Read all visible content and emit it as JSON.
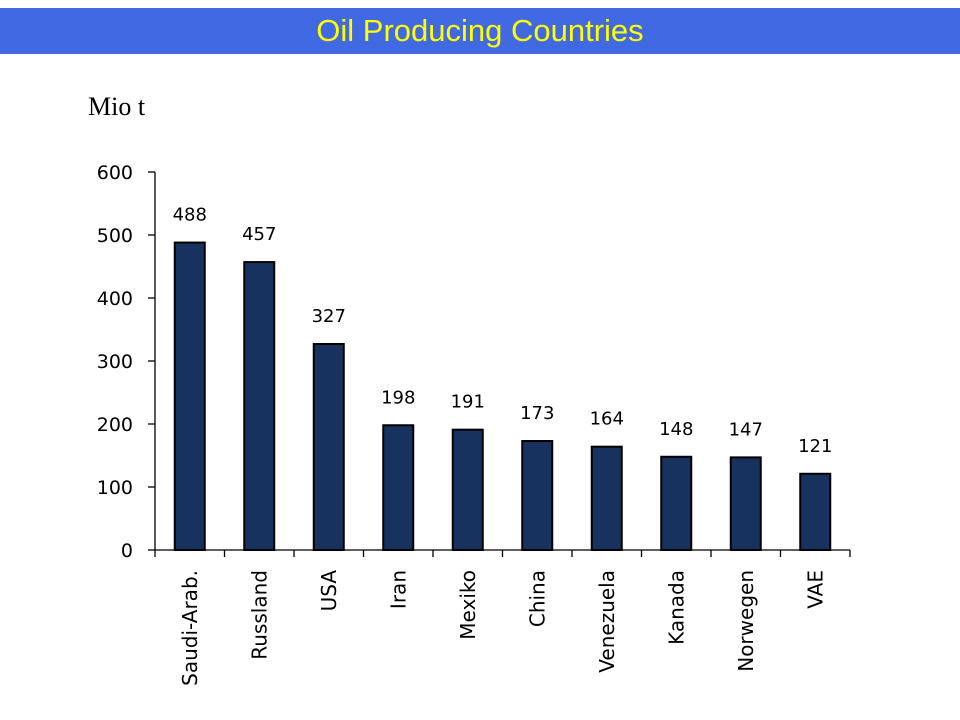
{
  "page": {
    "title": "Oil Producing Countries",
    "title_bar_color": "#4169E1",
    "title_text_color": "#FFFF00"
  },
  "chart_data": {
    "type": "bar",
    "ylabel": "Mio t",
    "categories": [
      "Saudi-Arab.",
      "Russland",
      "USA",
      "Iran",
      "Mexiko",
      "China",
      "Venezuela",
      "Kanada",
      "Norwegen",
      "VAE"
    ],
    "values": [
      488,
      457,
      327,
      198,
      191,
      173,
      164,
      148,
      147,
      121
    ],
    "data_labels": [
      "488",
      "457",
      "327",
      "198",
      "191",
      "173",
      "164",
      "148",
      "147",
      "121"
    ],
    "ylim": [
      0,
      600
    ],
    "yticks": [
      0,
      100,
      200,
      300,
      400,
      500,
      600
    ],
    "bar_color": "#17325F",
    "grid": false,
    "legend": "none"
  }
}
